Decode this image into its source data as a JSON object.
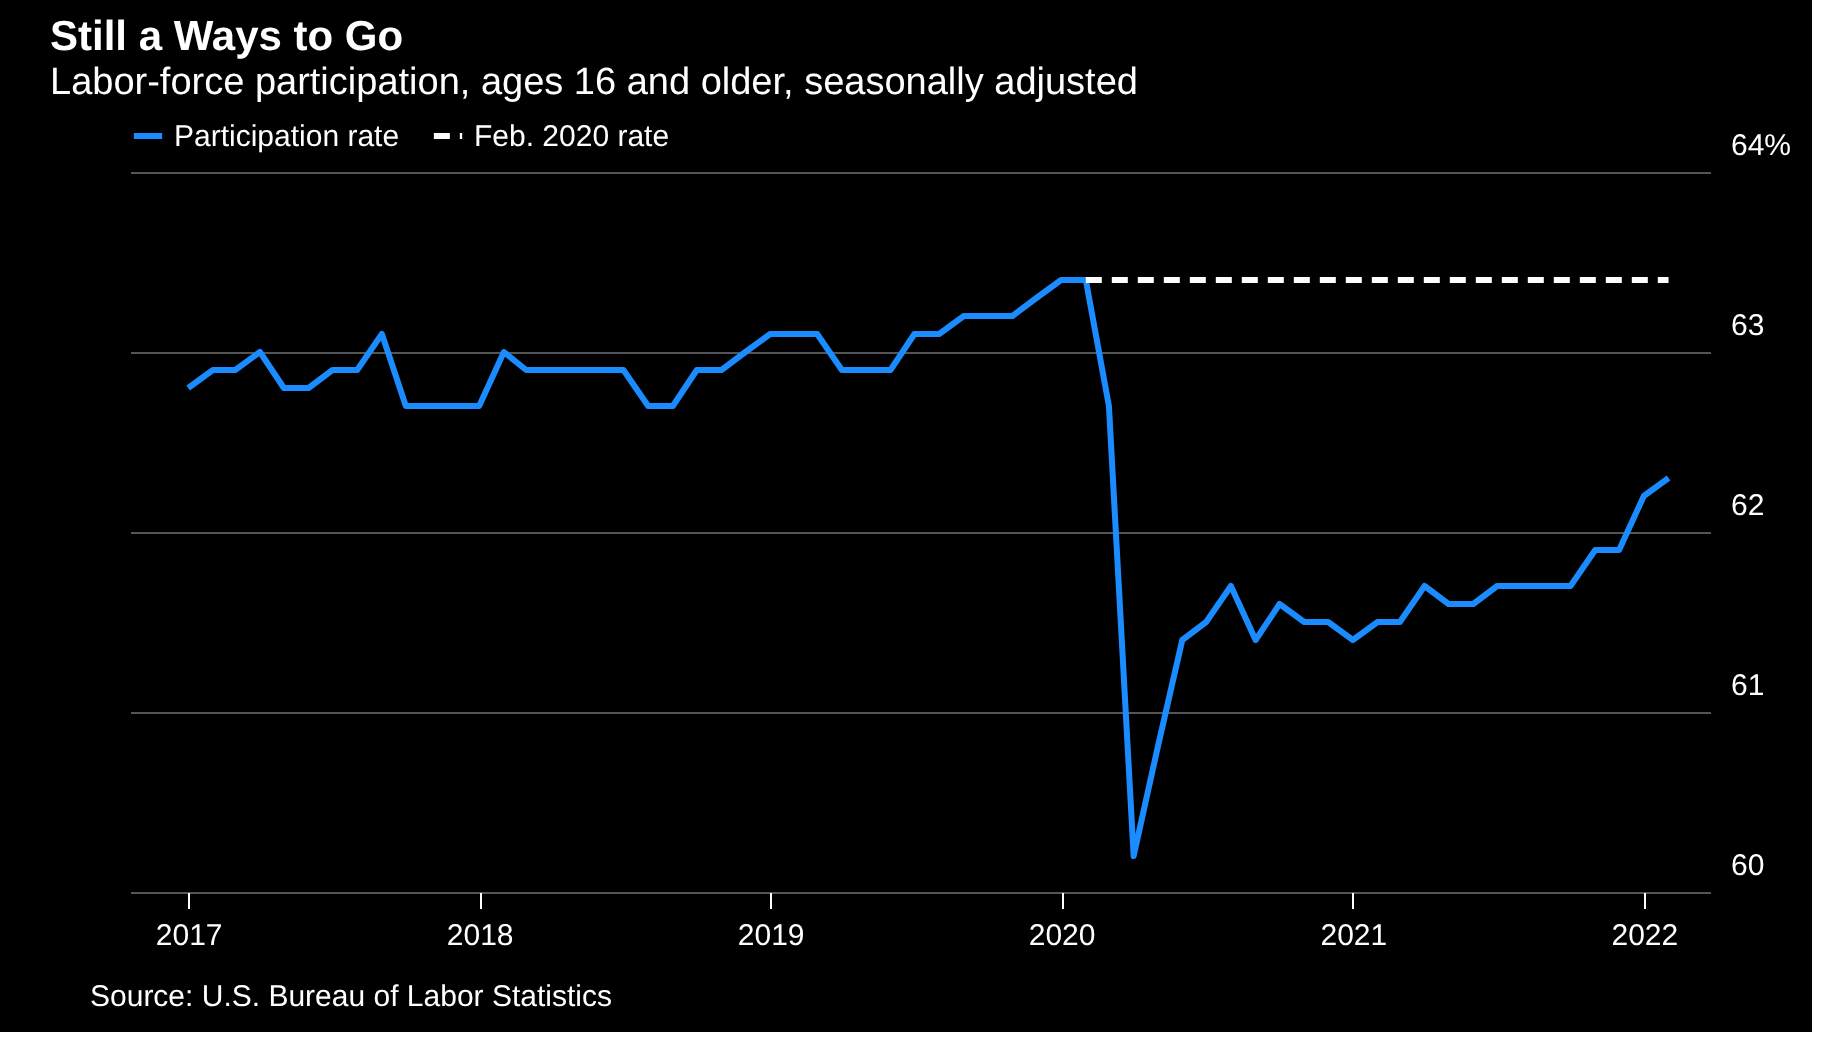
{
  "chart_data": {
    "type": "line",
    "title": "Still a Ways to Go",
    "subtitle": "Labor-force participation, ages 16 and older, seasonally adjusted",
    "x": [
      "2017-01",
      "2017-02",
      "2017-03",
      "2017-04",
      "2017-05",
      "2017-06",
      "2017-07",
      "2017-08",
      "2017-09",
      "2017-10",
      "2017-11",
      "2017-12",
      "2018-01",
      "2018-02",
      "2018-03",
      "2018-04",
      "2018-05",
      "2018-06",
      "2018-07",
      "2018-08",
      "2018-09",
      "2018-10",
      "2018-11",
      "2018-12",
      "2019-01",
      "2019-02",
      "2019-03",
      "2019-04",
      "2019-05",
      "2019-06",
      "2019-07",
      "2019-08",
      "2019-09",
      "2019-10",
      "2019-11",
      "2019-12",
      "2020-01",
      "2020-02",
      "2020-03",
      "2020-04",
      "2020-05",
      "2020-06",
      "2020-07",
      "2020-08",
      "2020-09",
      "2020-10",
      "2020-11",
      "2020-12",
      "2021-01",
      "2021-02",
      "2021-03",
      "2021-04",
      "2021-05",
      "2021-06",
      "2021-07",
      "2021-08",
      "2021-09",
      "2021-10",
      "2021-11",
      "2021-12",
      "2022-01",
      "2022-02"
    ],
    "series": [
      {
        "name": "Participation rate",
        "color": "#1a8cff",
        "line_style": "solid",
        "values": [
          62.8,
          62.9,
          62.9,
          63.0,
          62.8,
          62.8,
          62.9,
          62.9,
          63.1,
          62.7,
          62.7,
          62.7,
          62.7,
          63.0,
          62.9,
          62.9,
          62.9,
          62.9,
          62.9,
          62.7,
          62.7,
          62.9,
          62.9,
          63.0,
          63.1,
          63.1,
          63.1,
          62.9,
          62.9,
          62.9,
          63.1,
          63.1,
          63.2,
          63.2,
          63.2,
          63.3,
          63.4,
          63.4,
          62.7,
          60.2,
          60.8,
          61.4,
          61.5,
          61.7,
          61.4,
          61.6,
          61.5,
          61.5,
          61.4,
          61.5,
          61.5,
          61.7,
          61.6,
          61.6,
          61.7,
          61.7,
          61.7,
          61.7,
          61.9,
          61.9,
          62.2,
          62.3
        ]
      },
      {
        "name": "Feb. 2020 rate",
        "color": "#ffffff",
        "line_style": "dashed",
        "x": [
          "2020-02",
          "2022-02"
        ],
        "values": [
          63.4,
          63.4
        ]
      }
    ],
    "xlim": [
      "2016-10-20",
      "2022-03-25"
    ],
    "xticks": [
      "2017",
      "2018",
      "2019",
      "2020",
      "2021",
      "2022"
    ],
    "ylim": [
      60,
      64
    ],
    "yticks": [
      60,
      61,
      62,
      63,
      {
        "value": 64,
        "label": "64%"
      }
    ],
    "grid": "y",
    "legend": "top left",
    "annotations": [
      "Source: U.S. Bureau of Labor Statistics"
    ]
  }
}
